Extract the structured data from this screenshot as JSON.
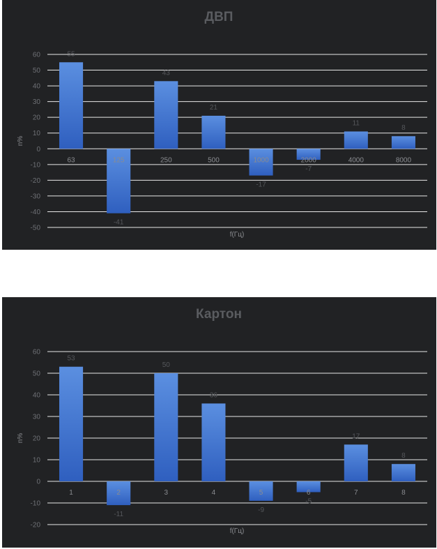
{
  "chart_data": [
    {
      "type": "bar",
      "title": "ДВП",
      "xlabel": "f(Гц)",
      "ylabel": "n%",
      "categories": [
        "63",
        "125",
        "250",
        "500",
        "1000",
        "2000",
        "4000",
        "8000"
      ],
      "values": [
        55,
        -41,
        43,
        21,
        -17,
        -7,
        11,
        8
      ],
      "yticks": [
        60,
        50,
        40,
        30,
        20,
        10,
        0,
        -10,
        -20,
        -30,
        -40,
        -50
      ],
      "ylim": [
        -50,
        60
      ],
      "grid": true,
      "bar_color": "#4a7fd4"
    },
    {
      "type": "bar",
      "title": "Картон",
      "xlabel": "f(Гц)",
      "ylabel": "n%",
      "categories": [
        "1",
        "2",
        "3",
        "4",
        "5",
        "6",
        "7",
        "8"
      ],
      "values": [
        53,
        -11,
        50,
        36,
        -9,
        -5,
        17,
        8
      ],
      "yticks": [
        60,
        50,
        40,
        30,
        20,
        10,
        0,
        -10,
        -20
      ],
      "ylim": [
        -20,
        60
      ],
      "grid": true,
      "bar_color": "#4a7fd4"
    }
  ]
}
